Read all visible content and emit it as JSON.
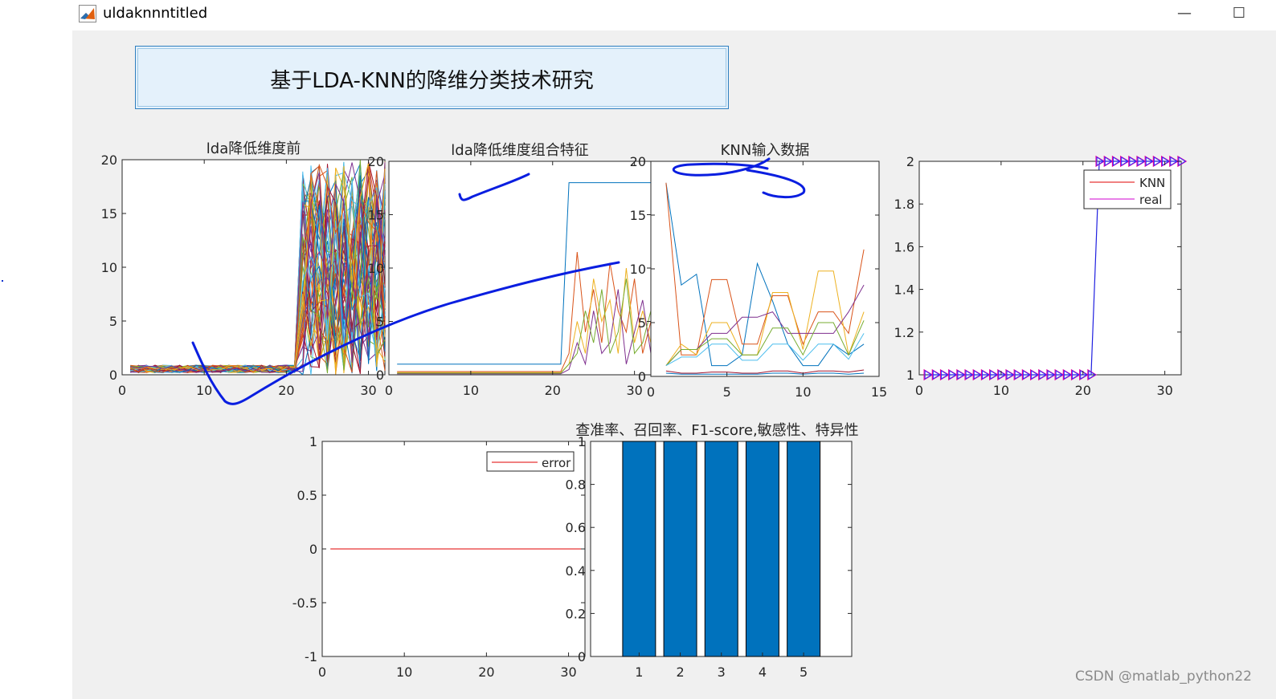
{
  "window": {
    "title": "uldaknnntitled",
    "minimize_glyph": "—",
    "maximize_glyph": "☐",
    "icon": "matlab-icon"
  },
  "banner": {
    "text": "基于LDA-KNN的降维分类技术研究"
  },
  "watermark": "CSDN @matlab_python22",
  "colors": {
    "figure_bg": "#f0f0f0",
    "banner_bg": "#e4f1fb",
    "bar": "#0072bd",
    "ink": "#0a1ee0",
    "knn": "#e00000",
    "real": "#d000d0"
  },
  "chart_data": [
    {
      "type": "line",
      "title": "lda降低维度前",
      "xlim": [
        0,
        32
      ],
      "ylim": [
        0,
        20
      ],
      "xticks": [
        "0",
        "10",
        "20",
        "30"
      ],
      "yticks": [
        "0",
        "5",
        "10",
        "15",
        "20"
      ],
      "note": "dozens of overlapping colored series: values ~0.5 for x 1–21, then 0–20 for x 21–32"
    },
    {
      "type": "line",
      "title": "lda降低维度组合特征",
      "xlim": [
        0,
        32
      ],
      "ylim": [
        0,
        20
      ],
      "xticks": [
        "0",
        "10",
        "20",
        "30"
      ],
      "yticks": [
        "0",
        "5",
        "10",
        "15",
        "20"
      ],
      "series": [
        {
          "x": [
            1,
            21,
            22,
            32
          ],
          "y": [
            1,
            1,
            18,
            18
          ]
        },
        {
          "x": [
            1,
            21,
            22,
            23,
            24,
            25,
            26,
            27,
            28,
            29,
            30,
            31,
            32
          ],
          "y": [
            0.3,
            0.3,
            2,
            11.5,
            4,
            8,
            3,
            10.5,
            6,
            4,
            9,
            2,
            5
          ]
        },
        {
          "x": [
            1,
            21,
            22,
            23,
            24,
            25,
            26,
            27,
            28,
            29,
            30,
            31,
            32
          ],
          "y": [
            0.2,
            0.2,
            1,
            5,
            2,
            9,
            5,
            7,
            2,
            10,
            3,
            6,
            3
          ]
        },
        {
          "x": [
            1,
            21,
            22,
            23,
            24,
            25,
            26,
            27,
            28,
            29,
            30,
            31,
            32
          ],
          "y": [
            0.1,
            0.1,
            0.5,
            3,
            1,
            6,
            2,
            3,
            8,
            1,
            4,
            7,
            2
          ]
        },
        {
          "x": [
            1,
            21,
            22,
            23,
            24,
            25,
            26,
            27,
            28,
            29,
            30,
            31,
            32
          ],
          "y": [
            0.15,
            0.15,
            1,
            2,
            6,
            3,
            8,
            2,
            4,
            9,
            2,
            3,
            6
          ]
        }
      ]
    },
    {
      "type": "line",
      "title": "KNN输入数据",
      "xlim": [
        0,
        15
      ],
      "ylim": [
        0,
        20
      ],
      "xticks": [
        "0",
        "5",
        "10",
        "15"
      ],
      "yticks": [
        "0",
        "5",
        "10",
        "15",
        "20"
      ],
      "series": [
        {
          "x": [
            1,
            2,
            3,
            4,
            5,
            6,
            7,
            8,
            9,
            10,
            11,
            12,
            13,
            14
          ],
          "y": [
            18,
            8.5,
            9.5,
            1,
            1,
            2,
            10.5,
            7,
            3,
            1,
            1,
            3,
            2,
            3
          ]
        },
        {
          "x": [
            1,
            2,
            3,
            4,
            5,
            6,
            7,
            8,
            9,
            10,
            11,
            12,
            13,
            14
          ],
          "y": [
            18,
            2,
            2,
            9,
            9,
            3,
            3,
            7.5,
            7.5,
            3,
            6,
            6,
            4,
            11.8
          ]
        },
        {
          "x": [
            1,
            2,
            3,
            4,
            5,
            6,
            7,
            8,
            9,
            10,
            11,
            12,
            13,
            14
          ],
          "y": [
            1,
            3,
            2,
            5,
            5,
            2,
            2,
            7.8,
            7.8,
            2.5,
            9.8,
            9.8,
            2,
            6
          ]
        },
        {
          "x": [
            1,
            2,
            3,
            4,
            5,
            6,
            7,
            8,
            9,
            10,
            11,
            12,
            13,
            14
          ],
          "y": [
            1,
            2.5,
            2.5,
            4,
            4,
            5.5,
            5.5,
            6,
            4,
            4,
            4,
            4,
            6,
            8.5
          ]
        },
        {
          "x": [
            1,
            2,
            3,
            4,
            5,
            6,
            7,
            8,
            9,
            10,
            11,
            12,
            13,
            14
          ],
          "y": [
            1,
            2.5,
            2.5,
            3.5,
            3.5,
            2,
            2,
            4.5,
            4.5,
            2,
            5,
            5,
            2,
            5.2
          ]
        },
        {
          "x": [
            1,
            2,
            3,
            4,
            5,
            6,
            7,
            8,
            9,
            10,
            11,
            12,
            13,
            14
          ],
          "y": [
            1,
            1.8,
            1.8,
            3,
            3,
            1.5,
            1.5,
            3,
            3,
            1.5,
            3,
            3,
            1.6,
            4
          ]
        },
        {
          "x": [
            1,
            2,
            3,
            4,
            5,
            6,
            7,
            8,
            9,
            10,
            11,
            12,
            13,
            14
          ],
          "y": [
            0.5,
            0.3,
            0.3,
            0.4,
            0.4,
            0.3,
            0.3,
            0.5,
            0.5,
            0.3,
            0.5,
            0.5,
            0.4,
            0.6
          ]
        },
        {
          "x": [
            1,
            2,
            3,
            4,
            5,
            6,
            7,
            8,
            9,
            10,
            11,
            12,
            13,
            14
          ],
          "y": [
            0.3,
            0.2,
            0.2,
            0.2,
            0.2,
            0.2,
            0.2,
            0.3,
            0.3,
            0.2,
            0.3,
            0.3,
            0.2,
            0.3
          ]
        }
      ]
    },
    {
      "type": "line",
      "title": "",
      "xlim": [
        0,
        32
      ],
      "ylim": [
        1,
        2
      ],
      "xticks": [
        "0",
        "10",
        "20",
        "30"
      ],
      "yticks": [
        "1",
        "1.2",
        "1.4",
        "1.6",
        "1.8",
        "2"
      ],
      "legend": [
        "KNN",
        "real"
      ],
      "legend_position": "top-right",
      "series": [
        {
          "name": "KNN",
          "x": [
            1,
            21,
            22,
            32
          ],
          "y": [
            1,
            1,
            2,
            2
          ]
        },
        {
          "name": "real",
          "x": [
            1,
            21,
            22,
            32
          ],
          "y": [
            1,
            1,
            2,
            2
          ]
        }
      ]
    },
    {
      "type": "line",
      "title": "",
      "xlim": [
        0,
        32
      ],
      "ylim": [
        -1,
        1
      ],
      "xticks": [
        "0",
        "10",
        "20",
        "30"
      ],
      "yticks": [
        "-1",
        "-0.5",
        "0",
        "0.5",
        "1"
      ],
      "legend": [
        "error"
      ],
      "legend_position": "top-right",
      "series": [
        {
          "name": "error",
          "x": [
            1,
            32
          ],
          "y": [
            0,
            0
          ]
        }
      ]
    },
    {
      "type": "bar",
      "title": "查准率、召回率、F1-score,敏感性、特异性",
      "categories": [
        "1",
        "2",
        "3",
        "4",
        "5"
      ],
      "values": [
        1,
        1,
        1,
        1,
        1
      ],
      "ylim": [
        0,
        1
      ],
      "yticks": [
        "0",
        "0.2",
        "0.4",
        "0.6",
        "0.8",
        "1"
      ]
    }
  ]
}
